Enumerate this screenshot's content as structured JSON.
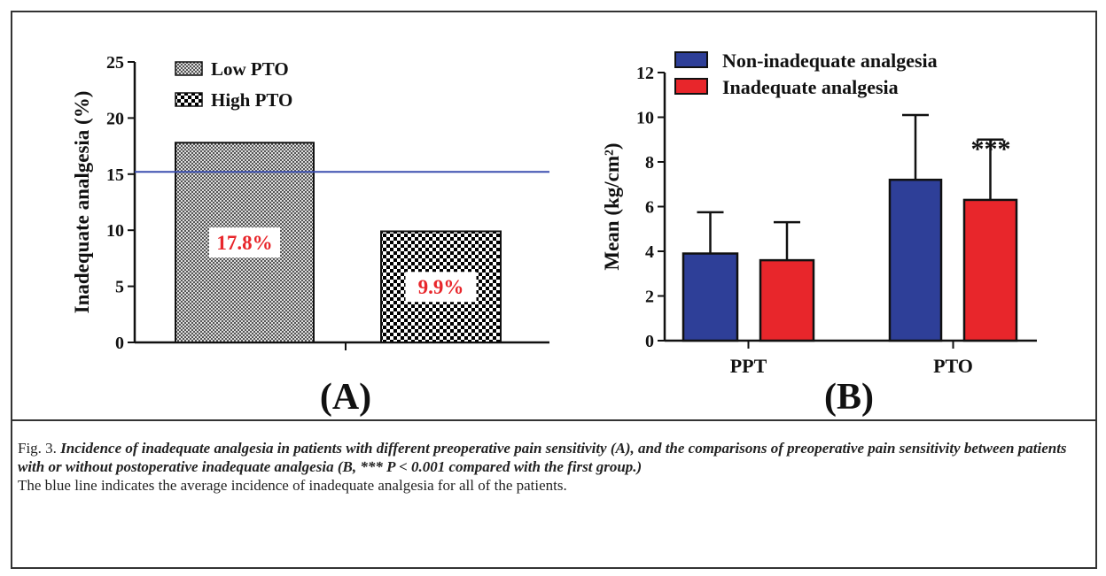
{
  "chart_data": [
    {
      "type": "bar",
      "panel": "(A)",
      "ylabel": "Inadequate analgesia (%)",
      "series": [
        {
          "name": "Low PTO",
          "pattern": "fine-check",
          "values": [
            17.8
          ],
          "value_labels": [
            "17.8%"
          ]
        },
        {
          "name": "High PTO",
          "pattern": "coarse-check",
          "values": [
            9.9
          ],
          "value_labels": [
            "9.9%"
          ]
        }
      ],
      "label_color": "#e8262b",
      "reference_line": 15.2,
      "reference_color": "#3b4fb0",
      "ylim": [
        0,
        25
      ],
      "yticks": [
        0,
        5,
        10,
        15,
        20,
        25
      ]
    },
    {
      "type": "grouped_bar",
      "panel": "(B)",
      "ylabel": "Mean (kg/cm²)",
      "categories": [
        "PPT",
        "PTO"
      ],
      "series": [
        {
          "name": "Non-inadequate analgesia",
          "color": "#2e3f98",
          "values": [
            3.9,
            7.2
          ],
          "errors": [
            1.85,
            2.9
          ]
        },
        {
          "name": "Inadequate analgesia",
          "color": "#e8262b",
          "values": [
            3.6,
            6.3
          ],
          "errors": [
            1.7,
            2.7
          ]
        }
      ],
      "annotation": "***",
      "ylim": [
        0,
        12
      ],
      "yticks": [
        0,
        2,
        4,
        6,
        8,
        10,
        12
      ]
    }
  ],
  "caption": {
    "label": "Fig. 3.",
    "text": "Incidence of  inadequate analgesia in patients with different preoperative pain sensitivity (A), and the comparisons of preoperative pain sensitivity between patients with or without postoperative inadequate analgesia (B, *** P < 0.001 compared with the first group.)",
    "note": "The blue line indicates the average incidence of inadequate analgesia for all of the patients."
  }
}
